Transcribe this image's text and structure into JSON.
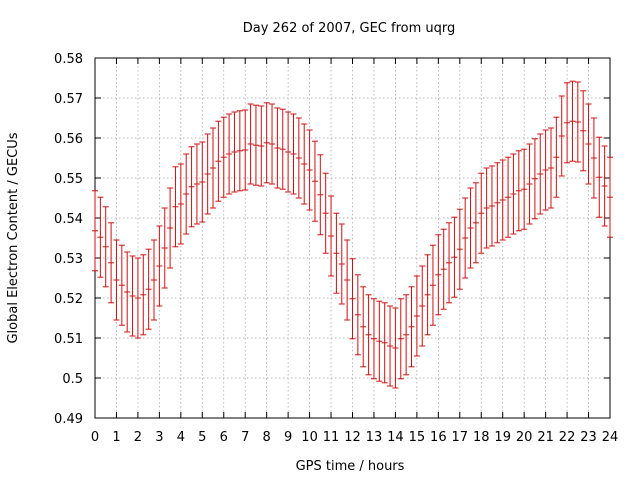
{
  "chart_data": {
    "type": "scatter",
    "style": "errorbars",
    "title": "Day 262 of 2007, GEC from uqrg",
    "xlabel": "GPS time / hours",
    "ylabel": "Global Electron Content / GECUs",
    "xlim": [
      0,
      24
    ],
    "ylim": [
      0.49,
      0.58
    ],
    "grid": true,
    "series_color": "#d01010",
    "x_ticks": [
      "0",
      "1",
      "2",
      "3",
      "4",
      "5",
      "6",
      "7",
      "8",
      "9",
      "10",
      "11",
      "12",
      "13",
      "14",
      "15",
      "16",
      "17",
      "18",
      "19",
      "20",
      "21",
      "22",
      "23",
      "24"
    ],
    "y_ticks": [
      "0.49",
      "0.5",
      "0.51",
      "0.52",
      "0.53",
      "0.54",
      "0.55",
      "0.56",
      "0.57",
      "0.58"
    ],
    "series": [
      {
        "x": [
          0,
          0.25,
          0.5,
          0.75,
          1,
          1.25,
          1.5,
          1.75,
          2,
          2.25,
          2.5,
          2.75,
          3,
          3.25,
          3.5,
          3.75,
          4,
          4.25,
          4.5,
          4.75,
          5,
          5.25,
          5.5,
          5.75,
          6,
          6.25,
          6.5,
          6.75,
          7,
          7.25,
          7.5,
          7.75,
          8,
          8.25,
          8.5,
          8.75,
          9,
          9.25,
          9.5,
          9.75,
          10,
          10.25,
          10.5,
          10.75,
          11,
          11.25,
          11.5,
          11.75,
          12,
          12.25,
          12.5,
          12.75,
          13,
          13.25,
          13.5,
          13.75,
          14,
          14.25,
          14.5,
          14.75,
          15,
          15.25,
          15.5,
          15.75,
          16,
          16.25,
          16.5,
          16.75,
          17,
          17.25,
          17.5,
          17.75,
          18,
          18.25,
          18.5,
          18.75,
          19,
          19.25,
          19.5,
          19.75,
          20,
          20.25,
          20.5,
          20.75,
          21,
          21.25,
          21.5,
          21.75,
          22,
          22.25,
          22.5,
          22.75,
          23,
          23.25,
          23.5,
          23.75,
          24
        ],
        "y": [
          0.5368,
          0.5352,
          0.5328,
          0.5288,
          0.5245,
          0.5232,
          0.5215,
          0.5205,
          0.52,
          0.5208,
          0.5222,
          0.5245,
          0.528,
          0.5325,
          0.5375,
          0.5428,
          0.5435,
          0.546,
          0.5478,
          0.5485,
          0.549,
          0.551,
          0.5525,
          0.5542,
          0.5552,
          0.556,
          0.5565,
          0.5568,
          0.557,
          0.5585,
          0.5582,
          0.558,
          0.5588,
          0.5585,
          0.5575,
          0.5572,
          0.5565,
          0.556,
          0.555,
          0.5535,
          0.552,
          0.5492,
          0.5458,
          0.5412,
          0.5355,
          0.5312,
          0.5285,
          0.5245,
          0.5198,
          0.5158,
          0.5128,
          0.5108,
          0.5098,
          0.5092,
          0.5088,
          0.508,
          0.5075,
          0.5098,
          0.5108,
          0.5128,
          0.5155,
          0.518,
          0.5208,
          0.5232,
          0.5258,
          0.5272,
          0.5288,
          0.5302,
          0.5322,
          0.535,
          0.5375,
          0.5388,
          0.5412,
          0.5425,
          0.543,
          0.5438,
          0.5445,
          0.5452,
          0.546,
          0.5468,
          0.5472,
          0.5485,
          0.5498,
          0.551,
          0.552,
          0.5525,
          0.5552,
          0.5605,
          0.5638,
          0.5642,
          0.564,
          0.5618,
          0.5585,
          0.555,
          0.5502,
          0.548,
          0.5452
        ],
        "err": 0.01
      }
    ]
  }
}
